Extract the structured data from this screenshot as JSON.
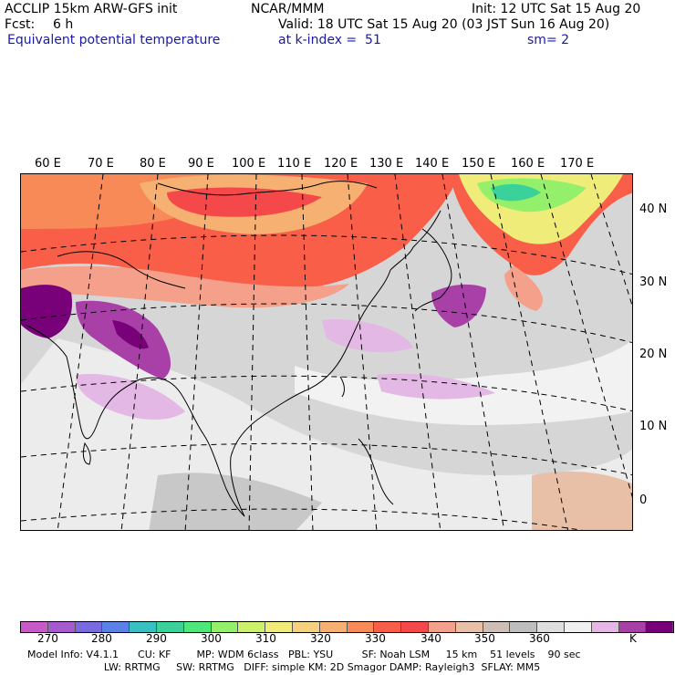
{
  "header": {
    "title": "ACCLIP 15km ARW-GFS init",
    "fcst_label": "Fcst:",
    "fcst_value": "6 h",
    "field": "Equivalent potential temperature",
    "center": "NCAR/MMM",
    "init": "Init: 12 UTC Sat 15 Aug 20",
    "valid": "Valid: 18 UTC Sat 15 Aug 20 (03 JST Sun 16 Aug 20)",
    "level": "at k-index =  51",
    "smooth": "sm= 2"
  },
  "map": {
    "region": "Asia / Western Pacific",
    "longitude_labels": [
      "60 E",
      "70 E",
      "80 E",
      "90 E",
      "100 E",
      "110 E",
      "120 E",
      "130 E",
      "140 E",
      "150 E",
      "160 E",
      "170 E"
    ],
    "latitude_labels": [
      "40 N",
      "30 N",
      "20 N",
      "10 N",
      "0"
    ]
  },
  "colorbar": {
    "colors": [
      "#c85ac8",
      "#a65ad0",
      "#7a6ae0",
      "#5a82e6",
      "#38c0c0",
      "#3ad29a",
      "#4ee87a",
      "#94f06a",
      "#ccf06a",
      "#f0ec7a",
      "#f5d080",
      "#f6b072",
      "#f88a58",
      "#f85e48",
      "#f4484a",
      "#f4a08a",
      "#e8c0a8",
      "#cdbfb5",
      "#bdbdbd",
      "#dedede",
      "#f0f0f0",
      "#e4b8e4",
      "#a840a8",
      "#780078"
    ],
    "labels": [
      "270",
      "280",
      "290",
      "300",
      "310",
      "320",
      "330",
      "340",
      "350",
      "360"
    ],
    "units": "K"
  },
  "footer": {
    "line1": "Model Info: V4.1.1      CU: KF        MP: WDM 6class   PBL: YSU         SF: Noah LSM     15 km    51 levels    90 sec",
    "line2": "                        LW: RRTMG     SW: RRTMG   DIFF: simple KM: 2D Smagor DAMP: Rayleigh3  SFLAY: MM5"
  }
}
